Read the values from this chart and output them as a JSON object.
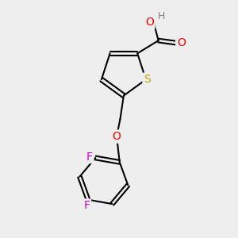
{
  "bg_color": "#eeeeee",
  "bond_color": "#000000",
  "bond_width": 1.5,
  "atom_colors": {
    "S": "#c8a000",
    "O": "#ff0000",
    "H": "#808080",
    "F": "#cc00cc",
    "C": "#000000"
  },
  "font_size": 9
}
